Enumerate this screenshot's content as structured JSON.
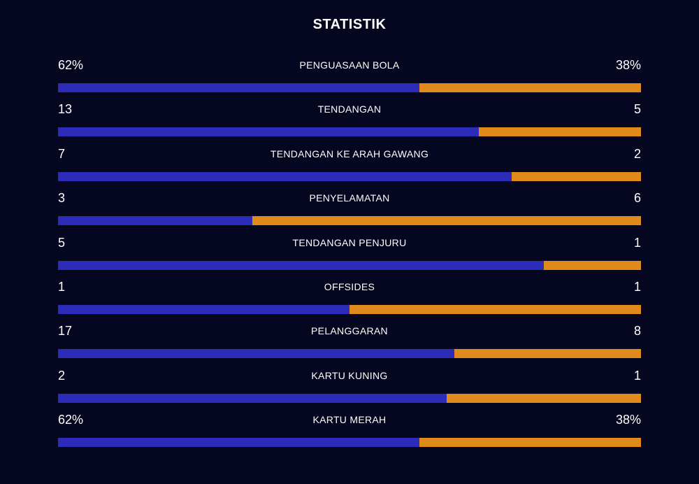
{
  "title": "STATISTIK",
  "colors": {
    "home": "#2c2cb8",
    "away": "#e08a1c",
    "background": "#05061f"
  },
  "stats": [
    {
      "label": "PENGUASAAN BOLA",
      "home": "62%",
      "away": "38%",
      "home_share": 0.62
    },
    {
      "label": "TENDANGAN",
      "home": "13",
      "away": "5",
      "home_share": 0.722
    },
    {
      "label": "TENDANGAN KE ARAH GAWANG",
      "home": "7",
      "away": "2",
      "home_share": 0.778
    },
    {
      "label": "PENYELAMATAN",
      "home": "3",
      "away": "6",
      "home_share": 0.333
    },
    {
      "label": "TENDANGAN PENJURU",
      "home": "5",
      "away": "1",
      "home_share": 0.833
    },
    {
      "label": "OFFSIDES",
      "home": "1",
      "away": "1",
      "home_share": 0.5
    },
    {
      "label": "PELANGGARAN",
      "home": "17",
      "away": "8",
      "home_share": 0.68
    },
    {
      "label": "KARTU KUNING",
      "home": "2",
      "away": "1",
      "home_share": 0.667
    },
    {
      "label": "KARTU MERAH",
      "home": "62%",
      "away": "38%",
      "home_share": 0.62
    }
  ]
}
